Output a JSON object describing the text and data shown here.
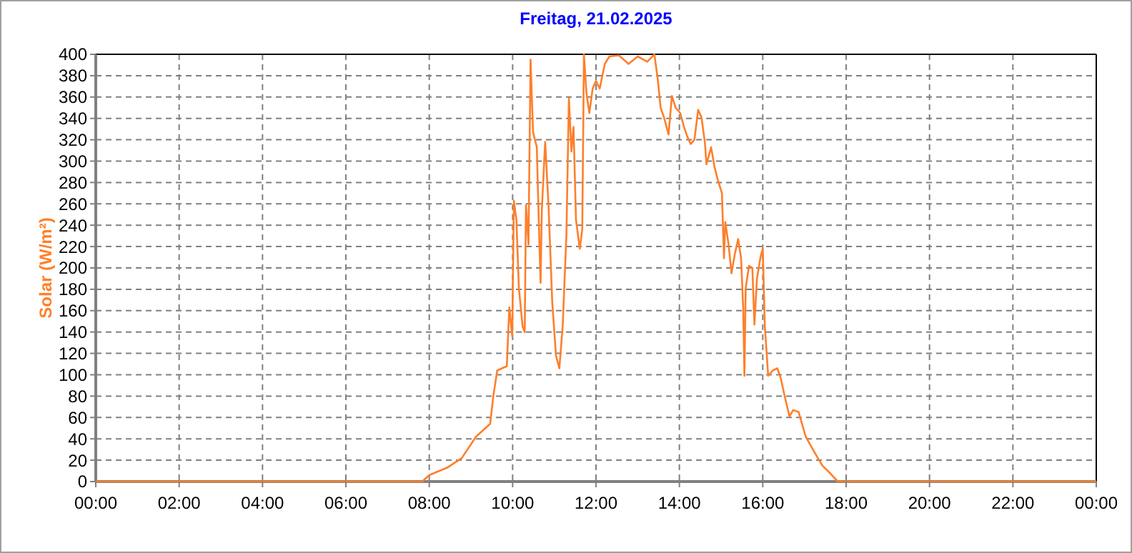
{
  "chart_data": {
    "type": "line",
    "title": "Freitag, 21.02.2025",
    "ylabel": "Solar  (W/m²)",
    "xlim": [
      0,
      24
    ],
    "ylim": [
      0,
      400
    ],
    "xticks": [
      {
        "value": 0,
        "label": "00:00"
      },
      {
        "value": 2,
        "label": "02:00"
      },
      {
        "value": 4,
        "label": "04:00"
      },
      {
        "value": 6,
        "label": "06:00"
      },
      {
        "value": 8,
        "label": "08:00"
      },
      {
        "value": 10,
        "label": "10:00"
      },
      {
        "value": 12,
        "label": "12:00"
      },
      {
        "value": 14,
        "label": "14:00"
      },
      {
        "value": 16,
        "label": "16:00"
      },
      {
        "value": 18,
        "label": "18:00"
      },
      {
        "value": 20,
        "label": "20:00"
      },
      {
        "value": 22,
        "label": "22:00"
      },
      {
        "value": 24,
        "label": "00:00"
      }
    ],
    "yticks": [
      0,
      20,
      40,
      60,
      80,
      100,
      120,
      140,
      160,
      180,
      200,
      220,
      240,
      260,
      280,
      300,
      320,
      340,
      360,
      380,
      400
    ],
    "grid": true,
    "marker": "none",
    "line_style": "solid",
    "series": [
      {
        "color": "#ff7f2a",
        "x": [
          0,
          7.83,
          8.0,
          8.43,
          8.78,
          9.12,
          9.46,
          9.54,
          9.63,
          9.86,
          9.92,
          9.99,
          10.03,
          10.09,
          10.15,
          10.24,
          10.29,
          10.32,
          10.38,
          10.43,
          10.49,
          10.58,
          10.61,
          10.67,
          10.7,
          10.78,
          10.86,
          10.95,
          11.04,
          11.12,
          11.2,
          11.29,
          11.35,
          11.41,
          11.46,
          11.52,
          11.61,
          11.67,
          11.71,
          11.77,
          11.84,
          11.92,
          12.0,
          12.09,
          12.21,
          12.32,
          12.55,
          12.78,
          13.0,
          13.23,
          13.4,
          13.48,
          13.55,
          13.63,
          13.74,
          13.82,
          13.91,
          14.02,
          14.11,
          14.19,
          14.27,
          14.36,
          14.45,
          14.53,
          14.61,
          14.65,
          14.76,
          14.84,
          14.91,
          15.02,
          15.07,
          15.1,
          15.18,
          15.25,
          15.33,
          15.41,
          15.48,
          15.53,
          15.56,
          15.59,
          15.67,
          15.75,
          15.8,
          15.86,
          15.95,
          16.0,
          16.05,
          16.13,
          16.24,
          16.35,
          16.43,
          16.52,
          16.64,
          16.73,
          16.86,
          17.03,
          17.26,
          17.43,
          17.66,
          17.8,
          24
        ],
        "values": [
          0,
          0,
          6,
          13,
          22,
          42,
          54,
          81,
          104,
          108,
          163,
          136,
          263,
          245,
          181,
          145,
          140,
          259,
          222,
          395,
          327,
          313,
          268,
          186,
          254,
          318,
          259,
          168,
          118,
          106,
          145,
          231,
          359,
          309,
          332,
          245,
          218,
          236,
          400,
          364,
          345,
          368,
          375,
          368,
          391,
          398,
          399,
          391,
          398,
          393,
          400,
          377,
          350,
          341,
          325,
          361,
          350,
          345,
          332,
          323,
          316,
          320,
          348,
          341,
          318,
          297,
          313,
          295,
          284,
          270,
          209,
          243,
          222,
          195,
          213,
          227,
          209,
          163,
          99,
          181,
          202,
          200,
          147,
          190,
          211,
          218,
          145,
          99,
          104,
          106,
          97,
          81,
          61,
          67,
          65,
          42,
          26,
          15,
          6,
          0,
          0
        ]
      }
    ]
  }
}
